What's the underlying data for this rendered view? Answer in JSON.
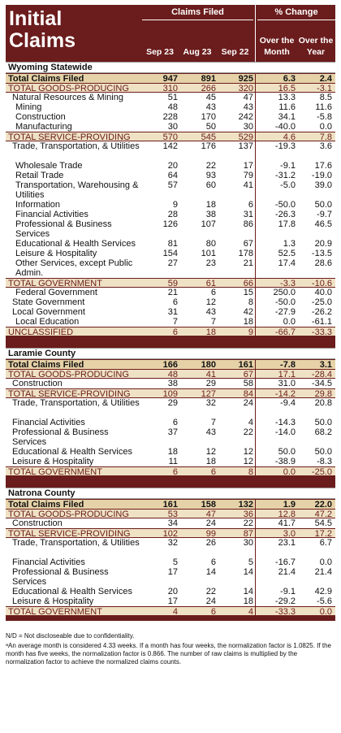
{
  "header": {
    "title_line1": "Initial",
    "title_line2": "Claims",
    "claims_filed": "Claims Filed",
    "pct_change": "% Change",
    "col_sep23": "Sep 23",
    "col_aug23": "Aug 23",
    "col_sep22": "Sep 22",
    "col_month": "Over the Month",
    "col_year": "Over the Year"
  },
  "sections": {
    "wyoming": "Wyoming Statewide",
    "laramie": "Laramie County",
    "natrona": "Natrona County"
  },
  "wyoming_rows": [
    {
      "label": "Total Claims Filed",
      "v": [
        "947",
        "891",
        "925",
        "6.3",
        "2.4"
      ]
    },
    {
      "label": "TOTAL GOODS-PRODUCING",
      "v": [
        "310",
        "266",
        "320",
        "16.5",
        "-3.1"
      ]
    },
    {
      "label": "Natural Resources & Mining",
      "v": [
        "51",
        "45",
        "47",
        "13.3",
        "8.5"
      ]
    },
    {
      "label": "Mining",
      "v": [
        "48",
        "43",
        "43",
        "11.6",
        "11.6"
      ]
    },
    {
      "label": "Construction",
      "v": [
        "228",
        "170",
        "242",
        "34.1",
        "-5.8"
      ]
    },
    {
      "label": "Manufacturing",
      "v": [
        "30",
        "50",
        "30",
        "-40.0",
        "0.0"
      ]
    },
    {
      "label": "TOTAL SERVICE-PROVIDING",
      "v": [
        "570",
        "545",
        "529",
        "4.6",
        "7.8"
      ]
    },
    {
      "label": "Trade, Transportation, & Utilities",
      "v": [
        "142",
        "176",
        "137",
        "-19.3",
        "3.6"
      ]
    },
    {
      "label": "Wholesale Trade",
      "v": [
        "20",
        "22",
        "17",
        "-9.1",
        "17.6"
      ]
    },
    {
      "label": "Retail Trade",
      "v": [
        "64",
        "93",
        "79",
        "-31.2",
        "-19.0"
      ]
    },
    {
      "label": "Transportation, Warehousing & Utilities",
      "v": [
        "57",
        "60",
        "41",
        "-5.0",
        "39.0"
      ]
    },
    {
      "label": "Information",
      "v": [
        "9",
        "18",
        "6",
        "-50.0",
        "50.0"
      ]
    },
    {
      "label": "Financial Activities",
      "v": [
        "28",
        "38",
        "31",
        "-26.3",
        "-9.7"
      ]
    },
    {
      "label": "Professional & Business Services",
      "v": [
        "126",
        "107",
        "86",
        "17.8",
        "46.5"
      ]
    },
    {
      "label": "Educational & Health Services",
      "v": [
        "81",
        "80",
        "67",
        "1.3",
        "20.9"
      ]
    },
    {
      "label": "Leisure & Hospitality",
      "v": [
        "154",
        "101",
        "178",
        "52.5",
        "-13.5"
      ]
    },
    {
      "label": "Other Services, except Public Admin.",
      "v": [
        "27",
        "23",
        "21",
        "17.4",
        "28.6"
      ]
    },
    {
      "label": "TOTAL GOVERNMENT",
      "v": [
        "59",
        "61",
        "66",
        "-3.3",
        "-10.6"
      ]
    },
    {
      "label": "Federal Government",
      "v": [
        "21",
        "6",
        "15",
        "250.0",
        "40.0"
      ]
    },
    {
      "label": "State Government",
      "v": [
        "6",
        "12",
        "8",
        "-50.0",
        "-25.0"
      ]
    },
    {
      "label": "Local Government",
      "v": [
        "31",
        "43",
        "42",
        "-27.9",
        "-26.2"
      ]
    },
    {
      "label": "Local Education",
      "v": [
        "7",
        "7",
        "18",
        "0.0",
        "-61.1"
      ]
    },
    {
      "label": "UNCLASSIFIED",
      "v": [
        "6",
        "18",
        "9",
        "-66.7",
        "-33.3"
      ]
    }
  ],
  "laramie_rows": [
    {
      "label": "Total Claims Filed",
      "v": [
        "166",
        "180",
        "161",
        "-7.8",
        "3.1"
      ]
    },
    {
      "label": "TOTAL GOODS-PRODUCING",
      "v": [
        "48",
        "41",
        "67",
        "17.1",
        "-28.4"
      ]
    },
    {
      "label": "Construction",
      "v": [
        "38",
        "29",
        "58",
        "31.0",
        "-34.5"
      ]
    },
    {
      "label": "TOTAL SERVICE-PROVIDING",
      "v": [
        "109",
        "127",
        "84",
        "-14.2",
        "29.8"
      ]
    },
    {
      "label": "Trade, Transportation, & Utilities",
      "v": [
        "29",
        "32",
        "24",
        "-9.4",
        "20.8"
      ]
    },
    {
      "label": "Financial Activities",
      "v": [
        "6",
        "7",
        "4",
        "-14.3",
        "50.0"
      ]
    },
    {
      "label": "Professional & Business Services",
      "v": [
        "37",
        "43",
        "22",
        "-14.0",
        "68.2"
      ]
    },
    {
      "label": "Educational & Health Services",
      "v": [
        "18",
        "12",
        "12",
        "50.0",
        "50.0"
      ]
    },
    {
      "label": "Leisure & Hospitality",
      "v": [
        "11",
        "18",
        "12",
        "-38.9",
        "-8.3"
      ]
    },
    {
      "label": "TOTAL GOVERNMENT",
      "v": [
        "6",
        "6",
        "8",
        "0.0",
        "-25.0"
      ]
    }
  ],
  "natrona_rows": [
    {
      "label": "Total Claims Filed",
      "v": [
        "161",
        "158",
        "132",
        "1.9",
        "22.0"
      ]
    },
    {
      "label": "TOTAL GOODS-PRODUCING",
      "v": [
        "53",
        "47",
        "36",
        "12.8",
        "47.2"
      ]
    },
    {
      "label": "Construction",
      "v": [
        "34",
        "24",
        "22",
        "41.7",
        "54.5"
      ]
    },
    {
      "label": "TOTAL SERVICE-PROVIDING",
      "v": [
        "102",
        "99",
        "87",
        "3.0",
        "17.2"
      ]
    },
    {
      "label": "Trade, Transportation, & Utilities",
      "v": [
        "32",
        "26",
        "30",
        "23.1",
        "6.7"
      ]
    },
    {
      "label": "Financial Activities",
      "v": [
        "5",
        "6",
        "5",
        "-16.7",
        "0.0"
      ]
    },
    {
      "label": "Professional & Business Services",
      "v": [
        "17",
        "14",
        "14",
        "21.4",
        "21.4"
      ]
    },
    {
      "label": "Educational & Health Services",
      "v": [
        "20",
        "22",
        "14",
        "-9.1",
        "42.9"
      ]
    },
    {
      "label": "Leisure & Hospitality",
      "v": [
        "17",
        "24",
        "18",
        "-29.2",
        "-5.6"
      ]
    },
    {
      "label": "TOTAL GOVERNMENT",
      "v": [
        "4",
        "6",
        "4",
        "-33.3",
        "0.0"
      ]
    }
  ],
  "notes": {
    "nd": "N/D = Not discloseable due to confidentiality.",
    "footnote": "ᵃAn average month is considered 4.33 weeks. If a month has four weeks, the normalization factor is 1.0825. If the month has five weeks, the normalization factor is 0.866. The number of raw claims is multiplied by the normalization factor to achieve the normalized claims counts."
  }
}
